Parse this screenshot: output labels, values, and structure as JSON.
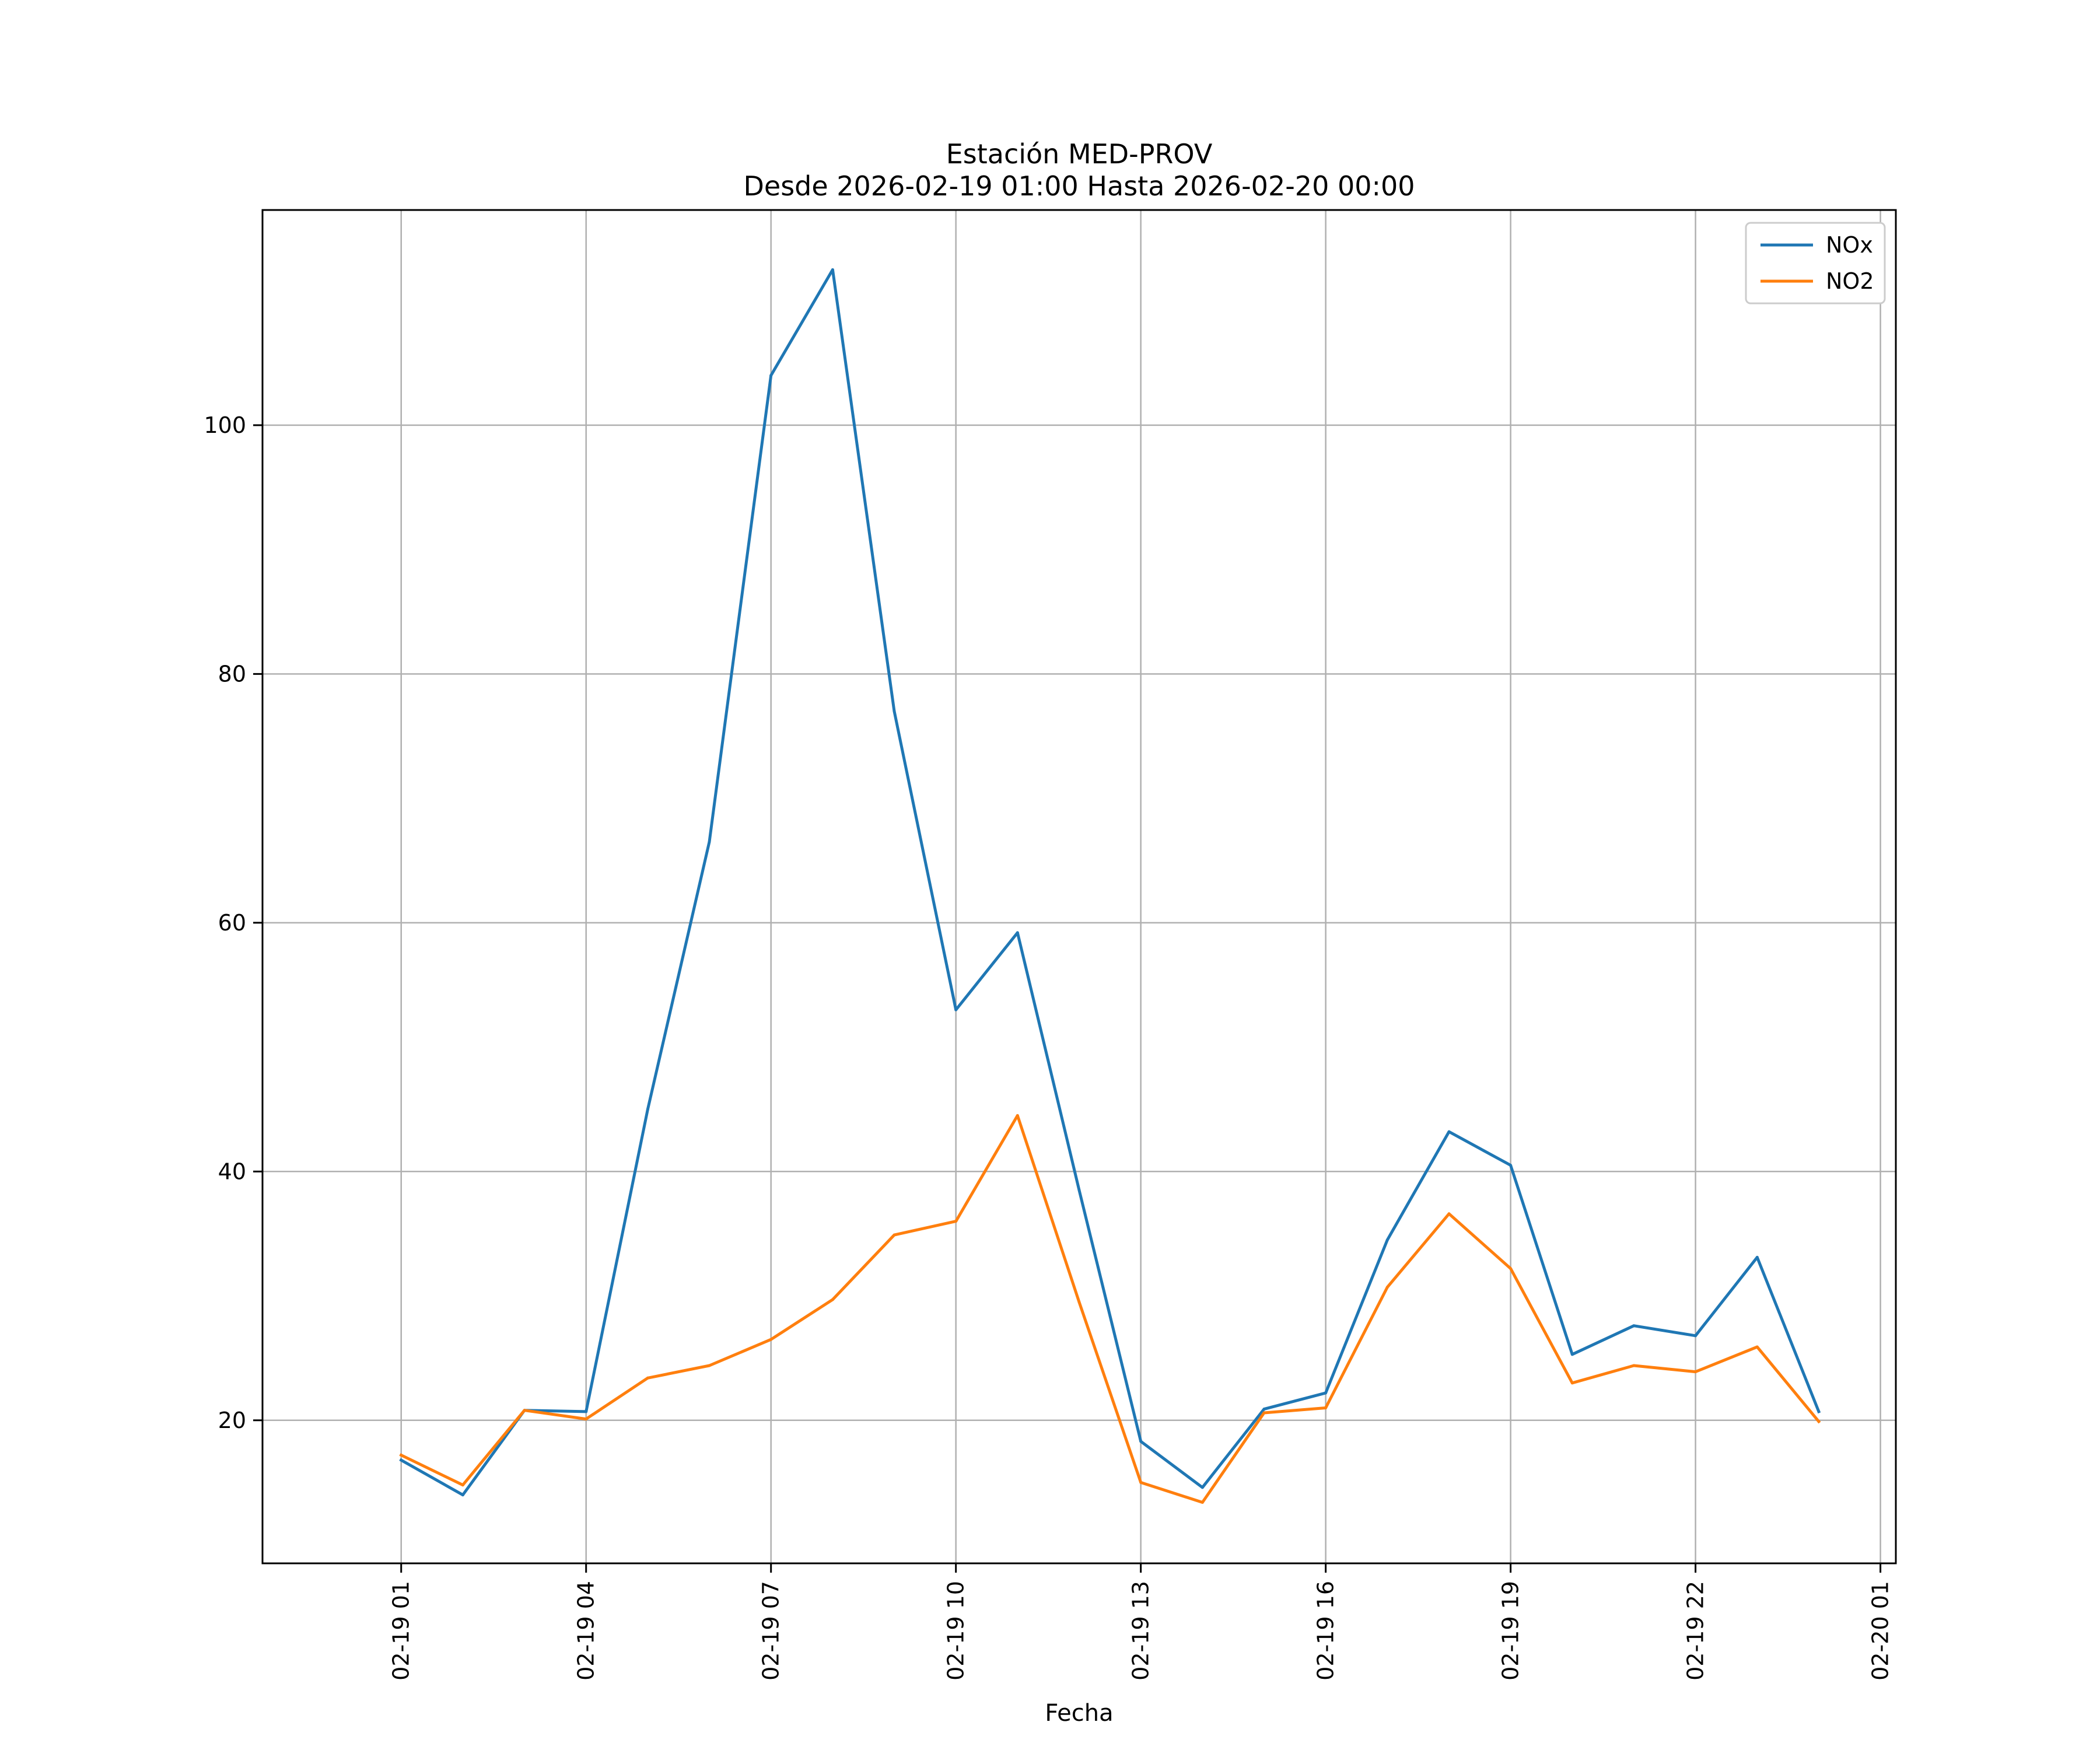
{
  "chart_data": {
    "type": "line",
    "title": "Estación MED-PROV",
    "subtitle": "Desde 2026-02-19 01:00 Hasta 2026-02-20 00:00",
    "xlabel": "Fecha",
    "ylabel": "",
    "grid": true,
    "legend_position": "top-right",
    "x": [
      "2026-02-19 01:00",
      "2026-02-19 02:00",
      "2026-02-19 03:00",
      "2026-02-19 04:00",
      "2026-02-19 05:00",
      "2026-02-19 06:00",
      "2026-02-19 07:00",
      "2026-02-19 08:00",
      "2026-02-19 09:00",
      "2026-02-19 10:00",
      "2026-02-19 11:00",
      "2026-02-19 12:00",
      "2026-02-19 13:00",
      "2026-02-19 14:00",
      "2026-02-19 15:00",
      "2026-02-19 16:00",
      "2026-02-19 17:00",
      "2026-02-19 18:00",
      "2026-02-19 19:00",
      "2026-02-19 20:00",
      "2026-02-19 21:00",
      "2026-02-19 22:00",
      "2026-02-19 23:00",
      "2026-02-20 00:00"
    ],
    "xlim": [
      "2026-02-18 22:45",
      "2026-02-20 01:15"
    ],
    "ylim": [
      8.5,
      117.3
    ],
    "x_ticks": [
      "2026-02-19 01:00",
      "2026-02-19 04:00",
      "2026-02-19 07:00",
      "2026-02-19 10:00",
      "2026-02-19 13:00",
      "2026-02-19 16:00",
      "2026-02-19 19:00",
      "2026-02-19 22:00",
      "2026-02-20 01:00"
    ],
    "x_tick_labels": [
      "02-19 01",
      "02-19 04",
      "02-19 07",
      "02-19 10",
      "02-19 13",
      "02-19 16",
      "02-19 19",
      "02-19 22",
      "02-20 01"
    ],
    "y_ticks": [
      20,
      40,
      60,
      80,
      100
    ],
    "y_tick_labels": [
      "20",
      "40",
      "60",
      "80",
      "100"
    ],
    "series": [
      {
        "name": "NOx",
        "color": "#1f77b4",
        "values": [
          16.8,
          14.0,
          20.8,
          20.7,
          45.0,
          66.5,
          104.0,
          112.5,
          77.0,
          53.0,
          59.2,
          38.5,
          18.3,
          14.6,
          20.9,
          22.2,
          34.5,
          43.2,
          40.5,
          25.3,
          27.6,
          26.8,
          33.1,
          20.7
        ]
      },
      {
        "name": "NO2",
        "color": "#ff7f0e",
        "values": [
          17.2,
          14.8,
          20.8,
          20.1,
          23.4,
          24.4,
          26.5,
          29.7,
          34.9,
          36.0,
          44.5,
          29.5,
          15.0,
          13.4,
          20.6,
          21.0,
          30.7,
          36.6,
          32.2,
          23.0,
          24.4,
          23.9,
          25.9,
          19.9
        ]
      }
    ]
  }
}
